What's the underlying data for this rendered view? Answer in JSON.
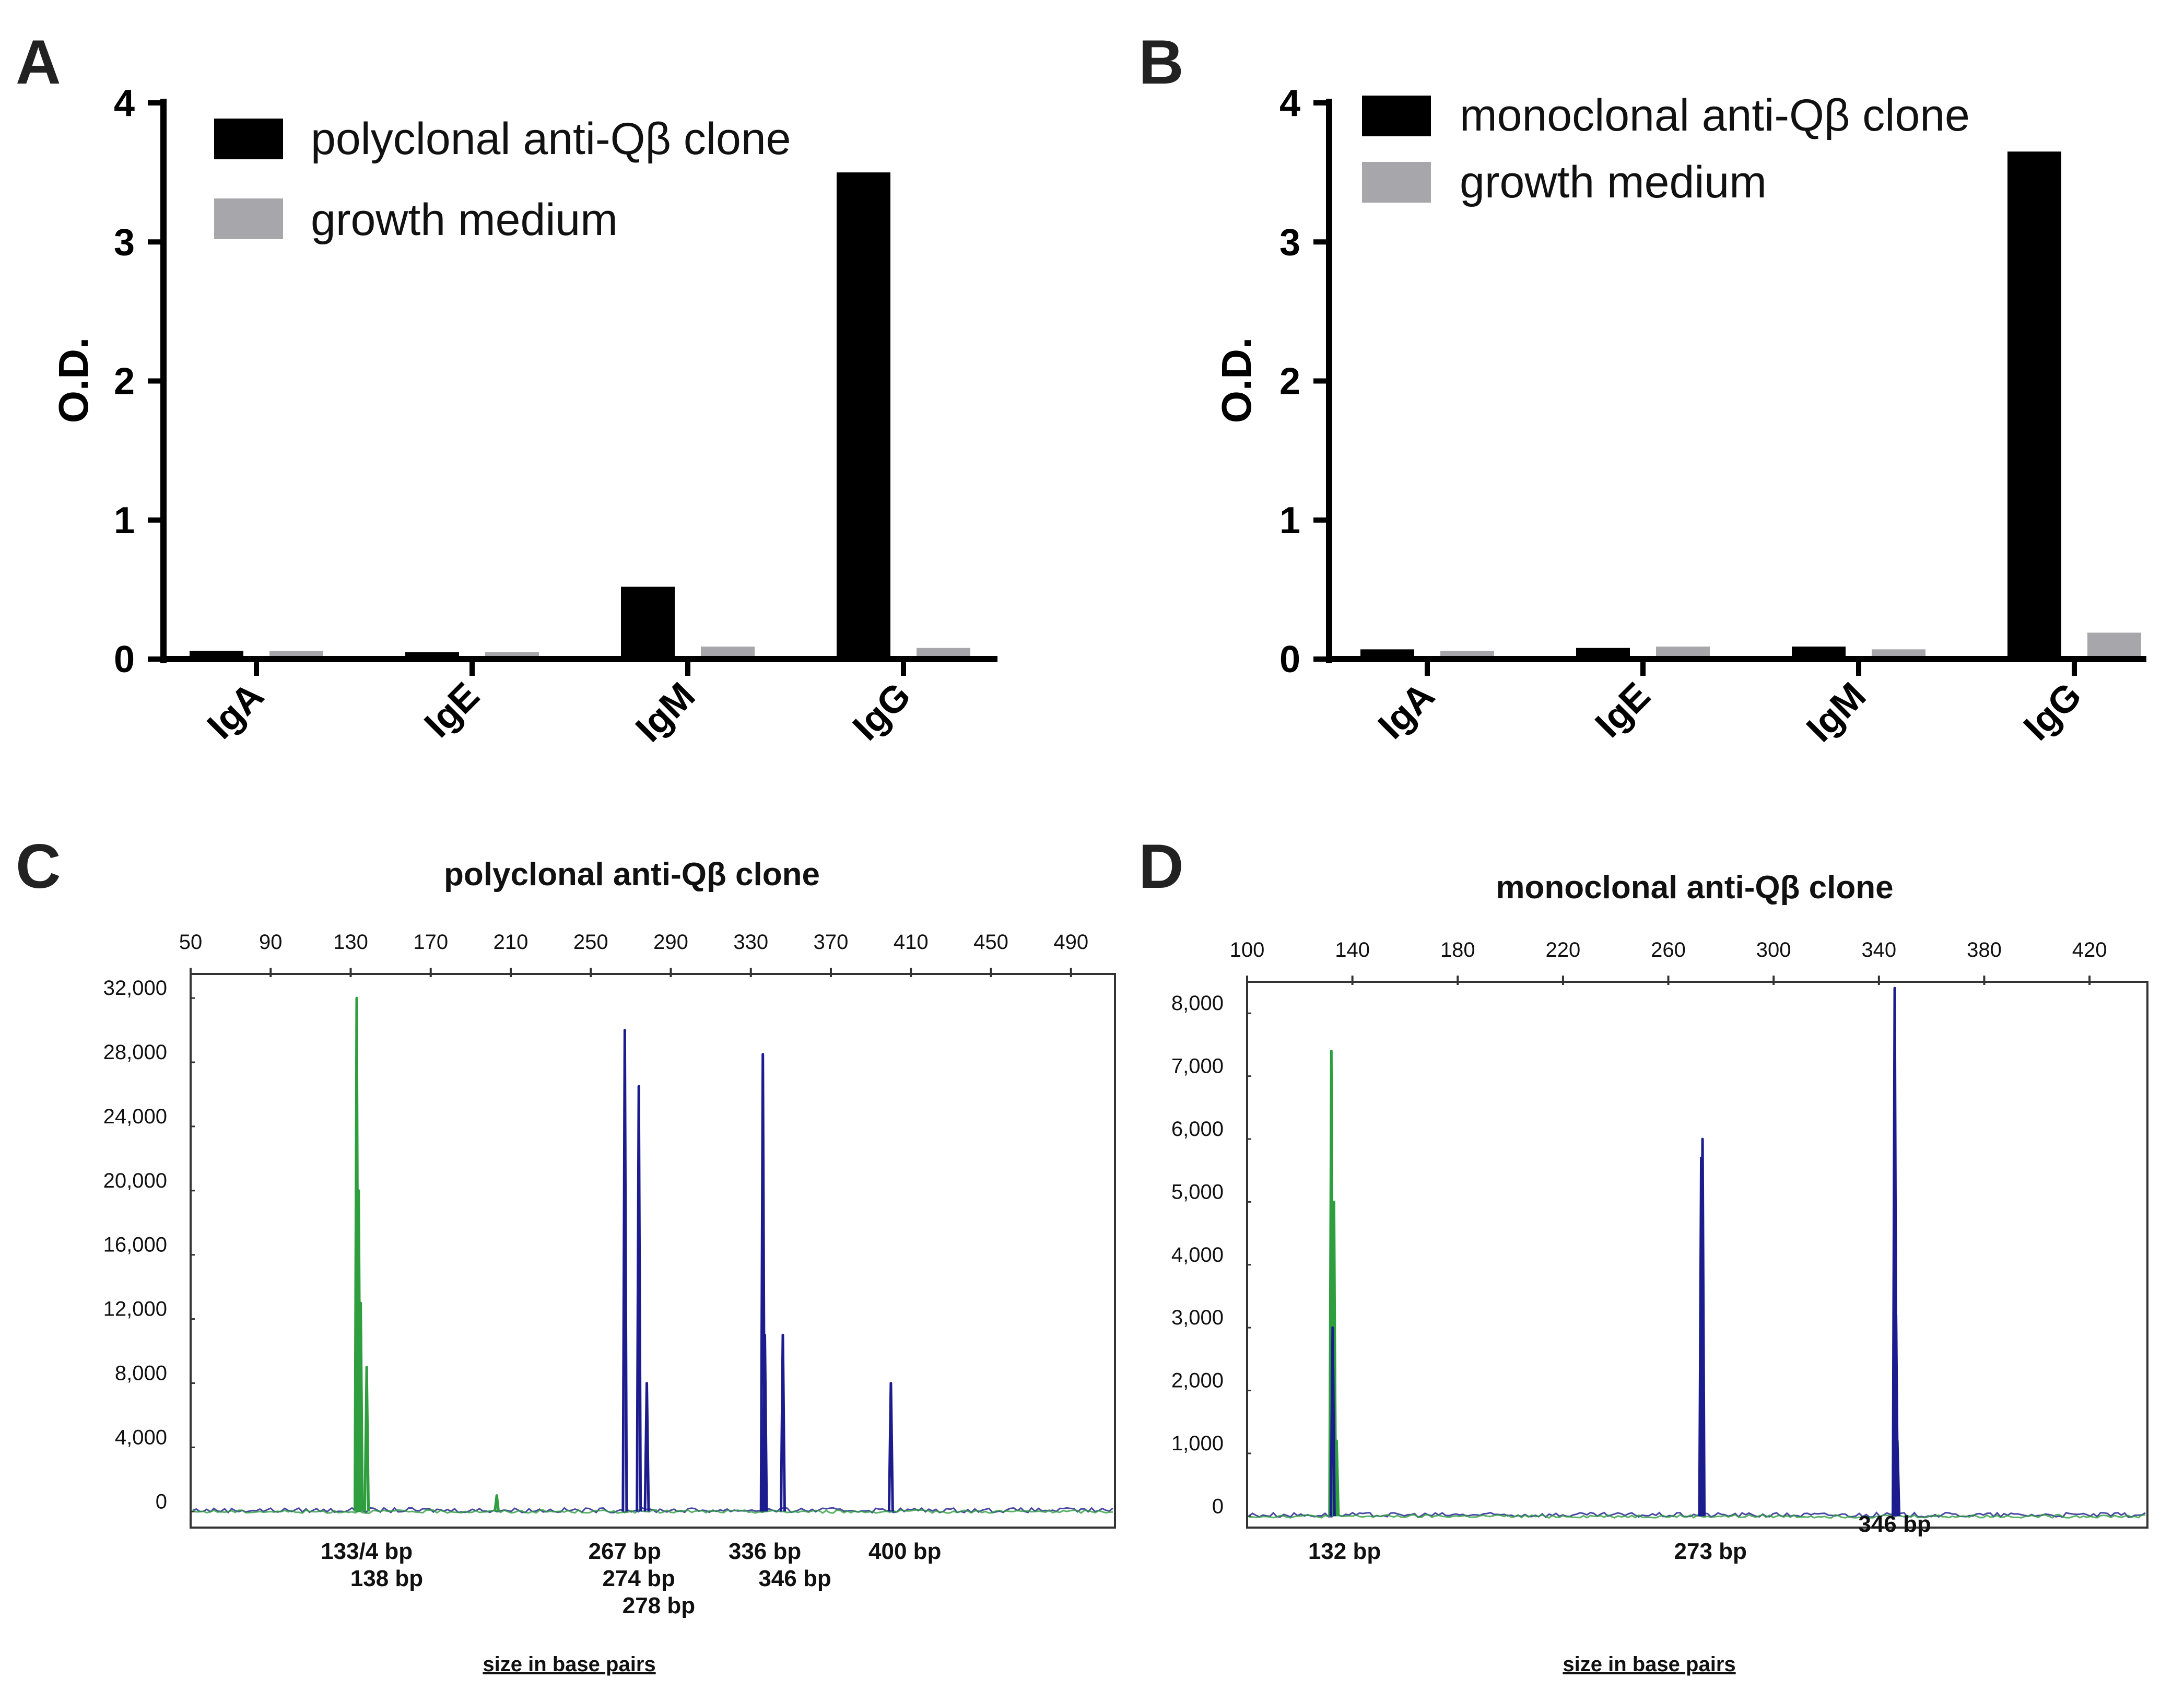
{
  "panels": {
    "A": "A",
    "B": "B",
    "C": "C",
    "D": "D"
  },
  "colors": {
    "bar_primary": "#000000",
    "bar_secondary": "#a7a7ab",
    "trace_green": "#2e9e3e",
    "trace_blue": "#1c1c8e",
    "frame": "#333333"
  },
  "chart_data": [
    {
      "panel": "A",
      "type": "bar",
      "ylabel": "O.D.",
      "ylim": [
        0,
        4
      ],
      "yticks": [
        "0",
        "1",
        "2",
        "3",
        "4"
      ],
      "categories": [
        "IgA",
        "IgE",
        "IgM",
        "IgG"
      ],
      "series": [
        {
          "name": "polyclonal anti-Qβ clone",
          "values": [
            0.06,
            0.05,
            0.52,
            3.5
          ]
        },
        {
          "name": "growth medium",
          "values": [
            0.06,
            0.05,
            0.09,
            0.08
          ]
        }
      ]
    },
    {
      "panel": "B",
      "type": "bar",
      "ylabel": "O.D.",
      "ylim": [
        0,
        4
      ],
      "yticks": [
        "0",
        "1",
        "2",
        "3",
        "4"
      ],
      "categories": [
        "IgA",
        "IgE",
        "IgM",
        "IgG"
      ],
      "series": [
        {
          "name": "monoclonal anti-Qβ clone",
          "values": [
            0.07,
            0.08,
            0.09,
            3.65
          ]
        },
        {
          "name": "growth medium",
          "values": [
            0.06,
            0.09,
            0.07,
            0.19
          ]
        }
      ]
    },
    {
      "panel": "C",
      "type": "line",
      "title": "polyclonal anti-Qβ clone",
      "xlabel": "size in base pairs",
      "xlim": [
        50,
        512
      ],
      "xticks": [
        "50",
        "90",
        "130",
        "170",
        "210",
        "250",
        "290",
        "330",
        "370",
        "410",
        "450",
        "490"
      ],
      "ylim": [
        -1000,
        33500
      ],
      "yticks": [
        {
          "value": 0,
          "label": "0"
        },
        {
          "value": 4000,
          "label": "4,000"
        },
        {
          "value": 8000,
          "label": "8,000"
        },
        {
          "value": 12000,
          "label": "12,000"
        },
        {
          "value": 16000,
          "label": "16,000"
        },
        {
          "value": 20000,
          "label": "20,000"
        },
        {
          "value": 24000,
          "label": "24,000"
        },
        {
          "value": 28000,
          "label": "28,000"
        },
        {
          "value": 32000,
          "label": "32,000"
        }
      ],
      "series": [
        {
          "name": "green",
          "peaks": [
            [
              133,
              32000
            ],
            [
              134,
              20000
            ],
            [
              135,
              13000
            ],
            [
              138,
              9000
            ],
            [
              203,
              1000
            ]
          ]
        },
        {
          "name": "blue",
          "peaks": [
            [
              267,
              30000
            ],
            [
              274,
              26500
            ],
            [
              278,
              8000
            ],
            [
              336,
              28500
            ],
            [
              337,
              11000
            ],
            [
              346,
              11000
            ],
            [
              400,
              8000
            ]
          ]
        }
      ],
      "peak_labels": [
        {
          "text": "133/4 bp",
          "x": 138,
          "row": 0
        },
        {
          "text": "138 bp",
          "x": 148,
          "row": 1
        },
        {
          "text": "267 bp",
          "x": 267,
          "row": 0
        },
        {
          "text": "274 bp",
          "x": 274,
          "row": 1
        },
        {
          "text": "278 bp",
          "x": 284,
          "row": 2
        },
        {
          "text": "336 bp",
          "x": 337,
          "row": 0
        },
        {
          "text": "346 bp",
          "x": 352,
          "row": 1
        },
        {
          "text": "400 bp",
          "x": 407,
          "row": 0
        }
      ]
    },
    {
      "panel": "D",
      "type": "line",
      "title": "monoclonal anti-Qβ clone",
      "xlabel": "size in base pairs",
      "xlim": [
        100,
        442
      ],
      "xticks": [
        "100",
        "140",
        "180",
        "220",
        "260",
        "300",
        "340",
        "380",
        "420"
      ],
      "ylim": [
        -180,
        8500
      ],
      "yticks": [
        {
          "value": 0,
          "label": "0"
        },
        {
          "value": 1000,
          "label": "1,000"
        },
        {
          "value": 2000,
          "label": "2,000"
        },
        {
          "value": 3000,
          "label": "3,000"
        },
        {
          "value": 4000,
          "label": "4,000"
        },
        {
          "value": 5000,
          "label": "5,000"
        },
        {
          "value": 6000,
          "label": "6,000"
        },
        {
          "value": 7000,
          "label": "7,000"
        },
        {
          "value": 8000,
          "label": "8,000"
        }
      ],
      "series": [
        {
          "name": "green",
          "peaks": [
            [
              132,
              7400
            ],
            [
              133,
              5000
            ],
            [
              134,
              1200
            ]
          ]
        },
        {
          "name": "blue",
          "peaks": [
            [
              132.5,
              3000
            ],
            [
              273,
              6000
            ],
            [
              272.5,
              5700
            ],
            [
              346,
              8400
            ],
            [
              346.5,
              3200
            ],
            [
              347,
              1200
            ]
          ]
        }
      ],
      "peak_labels": [
        {
          "text": "132 bp",
          "x": 137,
          "row": 0
        },
        {
          "text": "273 bp",
          "x": 276,
          "row": 0
        },
        {
          "text": "346 bp",
          "x": 346,
          "row": -1
        }
      ]
    }
  ]
}
